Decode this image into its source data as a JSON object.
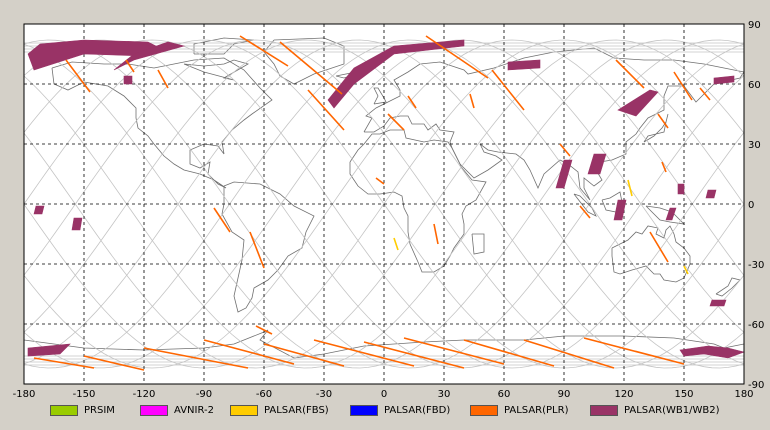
{
  "chart_data": {
    "type": "map",
    "title": "",
    "projection": "equirectangular",
    "xlim": [
      -180,
      180
    ],
    "ylim": [
      -90,
      90
    ],
    "x_ticks": [
      -180,
      -150,
      -120,
      -90,
      -60,
      -30,
      0,
      30,
      60,
      90,
      120,
      150,
      180
    ],
    "y_ticks": [
      90,
      60,
      30,
      0,
      -30,
      -60,
      -90
    ],
    "grid": true,
    "legend_placement": "bottom",
    "legend": [
      {
        "label": "PRSIM",
        "color": "#99cc00"
      },
      {
        "label": "AVNIR-2",
        "color": "#ff00ff"
      },
      {
        "label": "PALSAR(FBS)",
        "color": "#ffcc00"
      },
      {
        "label": "PALSAR(FBD)",
        "color": "#0000ff"
      },
      {
        "label": "PALSAR(PLR)",
        "color": "#ff6600"
      },
      {
        "label": "PALSAR(WB1/WB2)",
        "color": "#993366"
      }
    ],
    "wb_regions": [
      {
        "lon": [
          -178,
          -172,
          -150,
          -118,
          -110,
          -120,
          -150,
          -175
        ],
        "lat": [
          75,
          80,
          82,
          81,
          77,
          74,
          75,
          67
        ]
      },
      {
        "lon": [
          -135,
          -125,
          -108,
          -100,
          -125,
          -135
        ],
        "lat": [
          67,
          75,
          81,
          79,
          72,
          67
        ]
      },
      {
        "lon": [
          -130,
          -126,
          -126,
          -130
        ],
        "lat": [
          64,
          64,
          60,
          60
        ]
      },
      {
        "lon": [
          -28,
          -15,
          5,
          40,
          40,
          5,
          -15,
          -25
        ],
        "lat": [
          52,
          68,
          79,
          82,
          79,
          75,
          60,
          48
        ]
      },
      {
        "lon": [
          62,
          78,
          78,
          62
        ],
        "lat": [
          71,
          72,
          68,
          67
        ]
      },
      {
        "lon": [
          117,
          133,
          137,
          126
        ],
        "lat": [
          47,
          57,
          56,
          44
        ]
      },
      {
        "lon": [
          165,
          175,
          175,
          165
        ],
        "lat": [
          63,
          64,
          61,
          60
        ]
      },
      {
        "lon": [
          -174,
          -170,
          -171,
          -175
        ],
        "lat": [
          -1,
          -1,
          -5,
          -5
        ]
      },
      {
        "lon": [
          -155,
          -151,
          -152,
          -156
        ],
        "lat": [
          -7,
          -7,
          -13,
          -13
        ]
      },
      {
        "lon": [
          90,
          94,
          90,
          86
        ],
        "lat": [
          22,
          22,
          8,
          8
        ]
      },
      {
        "lon": [
          105,
          111,
          108,
          102
        ],
        "lat": [
          25,
          25,
          15,
          15
        ]
      },
      {
        "lon": [
          117,
          121,
          119,
          115
        ],
        "lat": [
          2,
          2,
          -8,
          -8
        ]
      },
      {
        "lon": [
          143,
          146,
          144,
          141
        ],
        "lat": [
          -2,
          -2,
          -8,
          -8
        ]
      },
      {
        "lon": [
          147,
          150,
          150,
          147
        ],
        "lat": [
          10,
          10,
          5,
          5
        ]
      },
      {
        "lon": [
          162,
          166,
          165,
          161
        ],
        "lat": [
          7,
          7,
          3,
          3
        ]
      },
      {
        "lon": [
          164,
          171,
          170,
          163
        ],
        "lat": [
          -48,
          -48,
          -51,
          -51
        ]
      },
      {
        "lon": [
          -178,
          -157,
          -162,
          -178
        ],
        "lat": [
          -72,
          -70,
          -75,
          -76
        ]
      },
      {
        "lon": [
          148,
          162,
          172,
          180,
          172,
          160,
          150
        ],
        "lat": [
          -73,
          -71,
          -72,
          -74,
          -77,
          -75,
          -76
        ]
      }
    ],
    "plr_tracks": [
      {
        "lon": [
          -159,
          -147
        ],
        "lat": [
          72,
          56
        ]
      },
      {
        "lon": [
          -129,
          -125
        ],
        "lat": [
          72,
          66
        ]
      },
      {
        "lon": [
          -113,
          -108
        ],
        "lat": [
          67,
          58
        ]
      },
      {
        "lon": [
          -52,
          -21
        ],
        "lat": [
          81,
          55
        ]
      },
      {
        "lon": [
          -72,
          -48
        ],
        "lat": [
          84,
          69
        ]
      },
      {
        "lon": [
          -38,
          -20
        ],
        "lat": [
          57,
          37
        ]
      },
      {
        "lon": [
          2,
          10
        ],
        "lat": [
          45,
          37
        ]
      },
      {
        "lon": [
          12,
          16
        ],
        "lat": [
          54,
          48
        ]
      },
      {
        "lon": [
          21,
          52
        ],
        "lat": [
          84,
          63
        ]
      },
      {
        "lon": [
          43,
          45
        ],
        "lat": [
          55,
          48
        ]
      },
      {
        "lon": [
          54,
          70
        ],
        "lat": [
          67,
          47
        ]
      },
      {
        "lon": [
          116,
          130
        ],
        "lat": [
          72,
          58
        ]
      },
      {
        "lon": [
          145,
          154
        ],
        "lat": [
          66,
          52
        ]
      },
      {
        "lon": [
          137,
          142
        ],
        "lat": [
          45,
          38
        ]
      },
      {
        "lon": [
          158,
          163
        ],
        "lat": [
          58,
          52
        ]
      },
      {
        "lon": [
          88,
          93
        ],
        "lat": [
          30,
          24
        ]
      },
      {
        "lon": [
          139,
          141
        ],
        "lat": [
          21,
          16
        ]
      },
      {
        "lon": [
          98,
          103
        ],
        "lat": [
          -1,
          -7
        ]
      },
      {
        "lon": [
          -85,
          -77
        ],
        "lat": [
          -2,
          -14
        ]
      },
      {
        "lon": [
          -67,
          -60
        ],
        "lat": [
          -14,
          -32
        ]
      },
      {
        "lon": [
          -4,
          0
        ],
        "lat": [
          13,
          10
        ]
      },
      {
        "lon": [
          25,
          27
        ],
        "lat": [
          -10,
          -20
        ]
      },
      {
        "lon": [
          133,
          142
        ],
        "lat": [
          -14,
          -29
        ]
      },
      {
        "lon": [
          -64,
          -56
        ],
        "lat": [
          -61,
          -65
        ]
      },
      {
        "lon": [
          -120,
          -68
        ],
        "lat": [
          -72,
          -82
        ]
      },
      {
        "lon": [
          -90,
          -45
        ],
        "lat": [
          -68,
          -80
        ]
      },
      {
        "lon": [
          -60,
          -20
        ],
        "lat": [
          -70,
          -81
        ]
      },
      {
        "lon": [
          -35,
          15
        ],
        "lat": [
          -68,
          -81
        ]
      },
      {
        "lon": [
          -10,
          40
        ],
        "lat": [
          -69,
          -82
        ]
      },
      {
        "lon": [
          10,
          60
        ],
        "lat": [
          -67,
          -80
        ]
      },
      {
        "lon": [
          40,
          85
        ],
        "lat": [
          -68,
          -81
        ]
      },
      {
        "lon": [
          70,
          115
        ],
        "lat": [
          -68,
          -82
        ]
      },
      {
        "lon": [
          100,
          150
        ],
        "lat": [
          -67,
          -80
        ]
      },
      {
        "lon": [
          -175,
          -145
        ],
        "lat": [
          -77,
          -82
        ]
      },
      {
        "lon": [
          -150,
          -120
        ],
        "lat": [
          -76,
          -83
        ]
      }
    ],
    "fbs_tracks": [
      {
        "lon": [
          5,
          7
        ],
        "lat": [
          -17,
          -23
        ]
      },
      {
        "lon": [
          122,
          124
        ],
        "lat": [
          12,
          4
        ]
      },
      {
        "lon": [
          150,
          152
        ],
        "lat": [
          -31,
          -35
        ]
      }
    ]
  }
}
